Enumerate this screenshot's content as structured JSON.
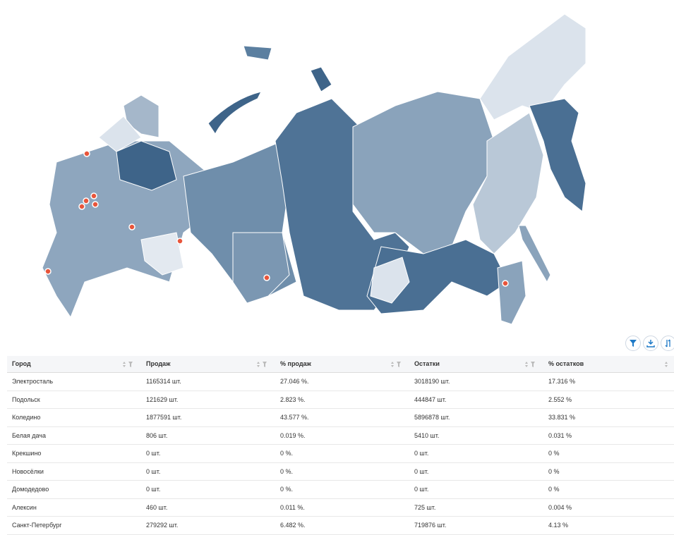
{
  "table": {
    "columns": [
      "Город",
      "Продаж",
      "% продаж",
      "Остатки",
      "% остатков"
    ],
    "rows": [
      [
        "Электросталь",
        "1165314 шт.",
        "27.046 %.",
        "3018190 шт.",
        "17.316 %"
      ],
      [
        "Подольск",
        "121629 шт.",
        "2.823 %.",
        "444847 шт.",
        "2.552 %"
      ],
      [
        "Коледино",
        "1877591 шт.",
        "43.577 %.",
        "5896878 шт.",
        "33.831 %"
      ],
      [
        "Белая дача",
        "806 шт.",
        "0.019 %.",
        "5410 шт.",
        "0.031 %"
      ],
      [
        "Крекшино",
        "0 шт.",
        "0 %.",
        "0 шт.",
        "0 %"
      ],
      [
        "Новосёлки",
        "0 шт.",
        "0 %.",
        "0 шт.",
        "0 %"
      ],
      [
        "Домодедово",
        "0 шт.",
        "0 %.",
        "0 шт.",
        "0 %"
      ],
      [
        "Алексин",
        "460 шт.",
        "0.011 %.",
        "725 шт.",
        "0.004 %"
      ],
      [
        "Санкт-Петербург",
        "279292 шт.",
        "6.482 %.",
        "719876 шт.",
        "4.13 %"
      ]
    ]
  }
}
